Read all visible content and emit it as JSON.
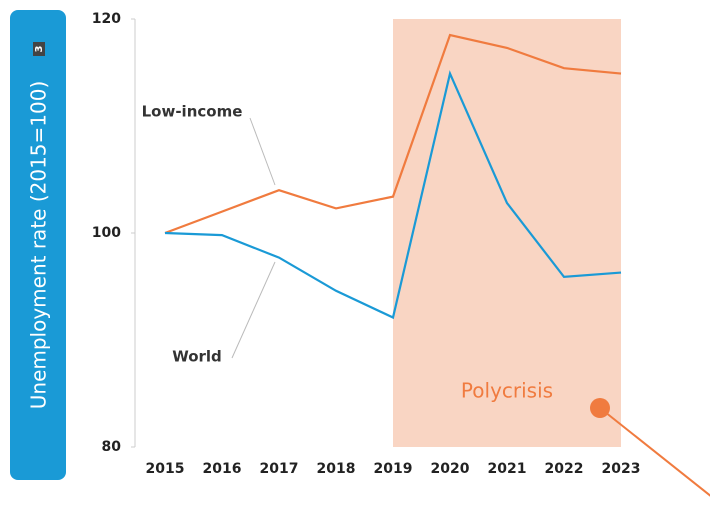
{
  "chart_data": {
    "type": "line",
    "y_label": "Unemployment rate (2015=100)",
    "footnote": "3",
    "categories": [
      "2015",
      "2016",
      "2017",
      "2018",
      "2019",
      "2020",
      "2021",
      "2022",
      "2023"
    ],
    "series": [
      {
        "name": "Low-income",
        "color": "#f07b3f",
        "values": [
          100,
          102.0,
          104.0,
          102.3,
          103.4,
          118.5,
          117.3,
          115.4,
          114.9
        ]
      },
      {
        "name": "World",
        "color": "#1a9ad6",
        "values": [
          100,
          99.8,
          97.7,
          94.6,
          92.1,
          114.9,
          102.8,
          95.9,
          96.3
        ]
      }
    ],
    "ylim": [
      80,
      120
    ],
    "yticks": [
      80,
      100,
      120
    ],
    "annotation": {
      "text": "Polycrisis",
      "x_start": "2019",
      "x_end": "2023",
      "color": "#f9d5c3"
    }
  }
}
